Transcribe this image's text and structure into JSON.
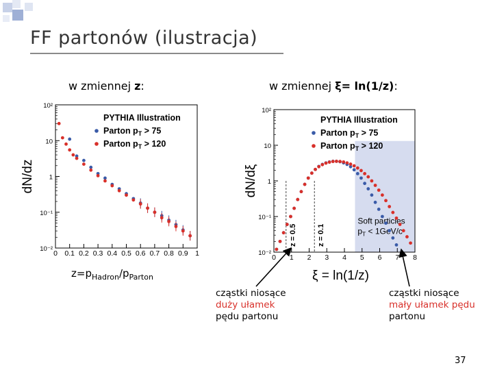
{
  "slide": {
    "title": "FF partonów (ilustracja)",
    "label_z_prefix": "w zmiennej ",
    "label_z_var": "z",
    "label_z_suffix": ":",
    "label_xi_prefix": "w zmiennej ",
    "label_xi_var": "ξ= ln(1/z)",
    "label_xi_suffix": ":",
    "z_def_main": "z=p",
    "z_def_sub1": "Hadron",
    "z_def_slash": "/p",
    "z_def_sub2": "Parton",
    "note_left": [
      "cząstki niosące",
      "duży ułamek",
      "pędu partonu"
    ],
    "note_right": [
      "cząstki niosące",
      "mały ułamek pędu",
      "partonu"
    ],
    "page_number": "37",
    "colors": {
      "blue": "#3a5ba8",
      "red": "#d8302a",
      "shade": "#d6dcef",
      "title": "#333333"
    }
  },
  "chart_data": [
    {
      "type": "scatter",
      "log_y": true,
      "xlabel": "",
      "ylabel": "dN/dz",
      "xlim": [
        0,
        1
      ],
      "ylim": [
        0.01,
        100
      ],
      "x_ticks": [
        "0",
        "0.1",
        "0.2",
        "0.3",
        "0.4",
        "0.5",
        "0.6",
        "0.7",
        "0.8",
        "0.9",
        "1"
      ],
      "y_ticks": [
        "10⁻²",
        "10⁻¹",
        "1",
        "10",
        "10²"
      ],
      "legend": {
        "header": "PYTHIA Illustration",
        "entries": [
          "Parton pT > 75",
          "Parton pT > 120"
        ],
        "position": "top-right"
      },
      "series": [
        {
          "name": "Parton pT > 75",
          "color": "#3a5ba8",
          "x": [
            0.1,
            0.15,
            0.2,
            0.25,
            0.3,
            0.35,
            0.4,
            0.45,
            0.5,
            0.55,
            0.6,
            0.65,
            0.7,
            0.75,
            0.8,
            0.85,
            0.9,
            0.95
          ],
          "y": [
            11,
            3.7,
            2.8,
            1.8,
            1.2,
            0.9,
            0.6,
            0.45,
            0.33,
            0.24,
            0.18,
            0.13,
            0.1,
            0.08,
            0.06,
            0.045,
            0.032,
            0.022
          ]
        },
        {
          "name": "Parton pT > 120",
          "color": "#d8302a",
          "x": [
            0.025,
            0.05,
            0.075,
            0.1,
            0.125,
            0.15,
            0.2,
            0.25,
            0.3,
            0.35,
            0.4,
            0.45,
            0.5,
            0.55,
            0.6,
            0.65,
            0.7,
            0.75,
            0.8,
            0.85,
            0.9,
            0.95
          ],
          "y": [
            30,
            12,
            8,
            5.5,
            4,
            3.2,
            2.2,
            1.5,
            1.05,
            0.75,
            0.55,
            0.4,
            0.3,
            0.22,
            0.17,
            0.13,
            0.1,
            0.07,
            0.055,
            0.04,
            0.03,
            0.022
          ]
        }
      ]
    },
    {
      "type": "scatter",
      "log_y": true,
      "xlabel": "ξ = ln(1/z)",
      "ylabel": "dN/dξ",
      "xlim": [
        0,
        8
      ],
      "ylim": [
        0.01,
        100
      ],
      "x_ticks": [
        "0",
        "1",
        "2",
        "3",
        "4",
        "5",
        "6",
        "7",
        "8"
      ],
      "y_ticks": [
        "10⁻²",
        "10⁻¹",
        "1",
        "10",
        "10²"
      ],
      "legend": {
        "header": "PYTHIA Illustration",
        "entries": [
          "Parton pT > 75",
          "Parton pT > 120"
        ],
        "position": "top-right"
      },
      "annotations": [
        {
          "text": "z = 0.5",
          "x": 0.69
        },
        {
          "text": "z = 0.1",
          "x": 2.3
        },
        {
          "text": "Soft particles",
          "region": [
            4.6,
            8
          ]
        },
        {
          "text": "pT < 1GeV/c",
          "region": [
            4.6,
            8
          ]
        }
      ],
      "series": [
        {
          "name": "Parton pT > 75",
          "color": "#3a5ba8",
          "x": [
            0.15,
            0.35,
            0.55,
            0.75,
            0.95,
            1.15,
            1.35,
            1.55,
            1.75,
            1.95,
            2.15,
            2.35,
            2.55,
            2.75,
            2.95,
            3.15,
            3.35,
            3.55,
            3.75,
            3.95,
            4.15,
            4.35,
            4.55,
            4.75,
            4.95,
            5.15,
            5.35,
            5.55,
            5.75,
            5.95,
            6.15,
            6.35,
            6.55,
            6.75,
            6.95
          ],
          "y": [
            0.012,
            0.02,
            0.035,
            0.06,
            0.1,
            0.17,
            0.3,
            0.5,
            0.8,
            1.2,
            1.65,
            2.1,
            2.55,
            2.9,
            3.2,
            3.4,
            3.55,
            3.55,
            3.45,
            3.2,
            2.9,
            2.5,
            2.05,
            1.6,
            1.2,
            0.85,
            0.6,
            0.4,
            0.25,
            0.16,
            0.1,
            0.065,
            0.04,
            0.025,
            0.016
          ]
        },
        {
          "name": "Parton pT > 120",
          "color": "#d8302a",
          "x": [
            0.15,
            0.35,
            0.55,
            0.75,
            0.95,
            1.15,
            1.35,
            1.55,
            1.75,
            1.95,
            2.15,
            2.35,
            2.55,
            2.75,
            2.95,
            3.15,
            3.35,
            3.55,
            3.75,
            3.95,
            4.15,
            4.35,
            4.55,
            4.75,
            4.95,
            5.15,
            5.35,
            5.55,
            5.75,
            5.95,
            6.15,
            6.35,
            6.55,
            6.75,
            6.95,
            7.15,
            7.35,
            7.55,
            7.75
          ],
          "y": [
            0.012,
            0.02,
            0.035,
            0.06,
            0.1,
            0.17,
            0.3,
            0.5,
            0.8,
            1.2,
            1.65,
            2.1,
            2.5,
            2.85,
            3.15,
            3.35,
            3.5,
            3.55,
            3.5,
            3.4,
            3.2,
            2.95,
            2.65,
            2.3,
            1.95,
            1.6,
            1.3,
            1.0,
            0.75,
            0.55,
            0.4,
            0.28,
            0.19,
            0.13,
            0.09,
            0.06,
            0.04,
            0.027,
            0.018
          ]
        }
      ]
    }
  ]
}
